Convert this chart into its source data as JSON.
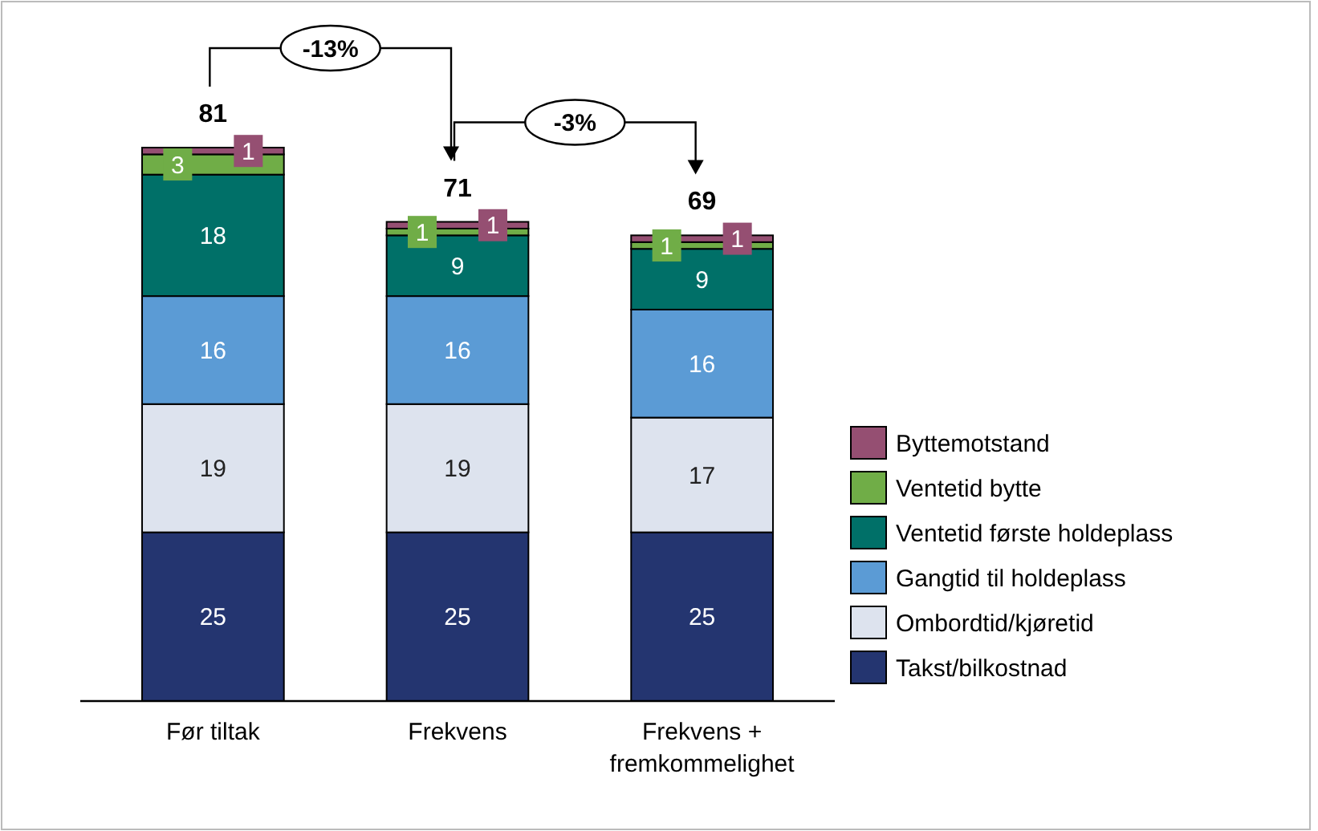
{
  "chart_data": {
    "type": "bar",
    "stacked": true,
    "data_labels": true,
    "legend": "right",
    "categories": [
      "Før tiltak",
      "Frekvens",
      "Frekvens + fremkommelighet"
    ],
    "series": [
      {
        "name": "Takst/bilkostnad",
        "color": "#243570",
        "values": [
          25,
          25,
          25
        ]
      },
      {
        "name": "Ombordtid/kjøretid",
        "color": "#dde3ee",
        "values": [
          19,
          19,
          17
        ]
      },
      {
        "name": "Gangtid til holdeplass",
        "color": "#5b9bd5",
        "values": [
          16,
          16,
          16
        ]
      },
      {
        "name": "Ventetid første holdeplass",
        "color": "#007068",
        "values": [
          18,
          9,
          9
        ]
      },
      {
        "name": "Ventetid bytte",
        "color": "#70ad47",
        "values": [
          3,
          1,
          1
        ]
      },
      {
        "name": "Byttemotstand",
        "color": "#954f72",
        "values": [
          1,
          1,
          1
        ]
      }
    ],
    "totals": [
      "81",
      "71",
      "69"
    ],
    "annotations": [
      "-13%",
      "-3%"
    ]
  }
}
